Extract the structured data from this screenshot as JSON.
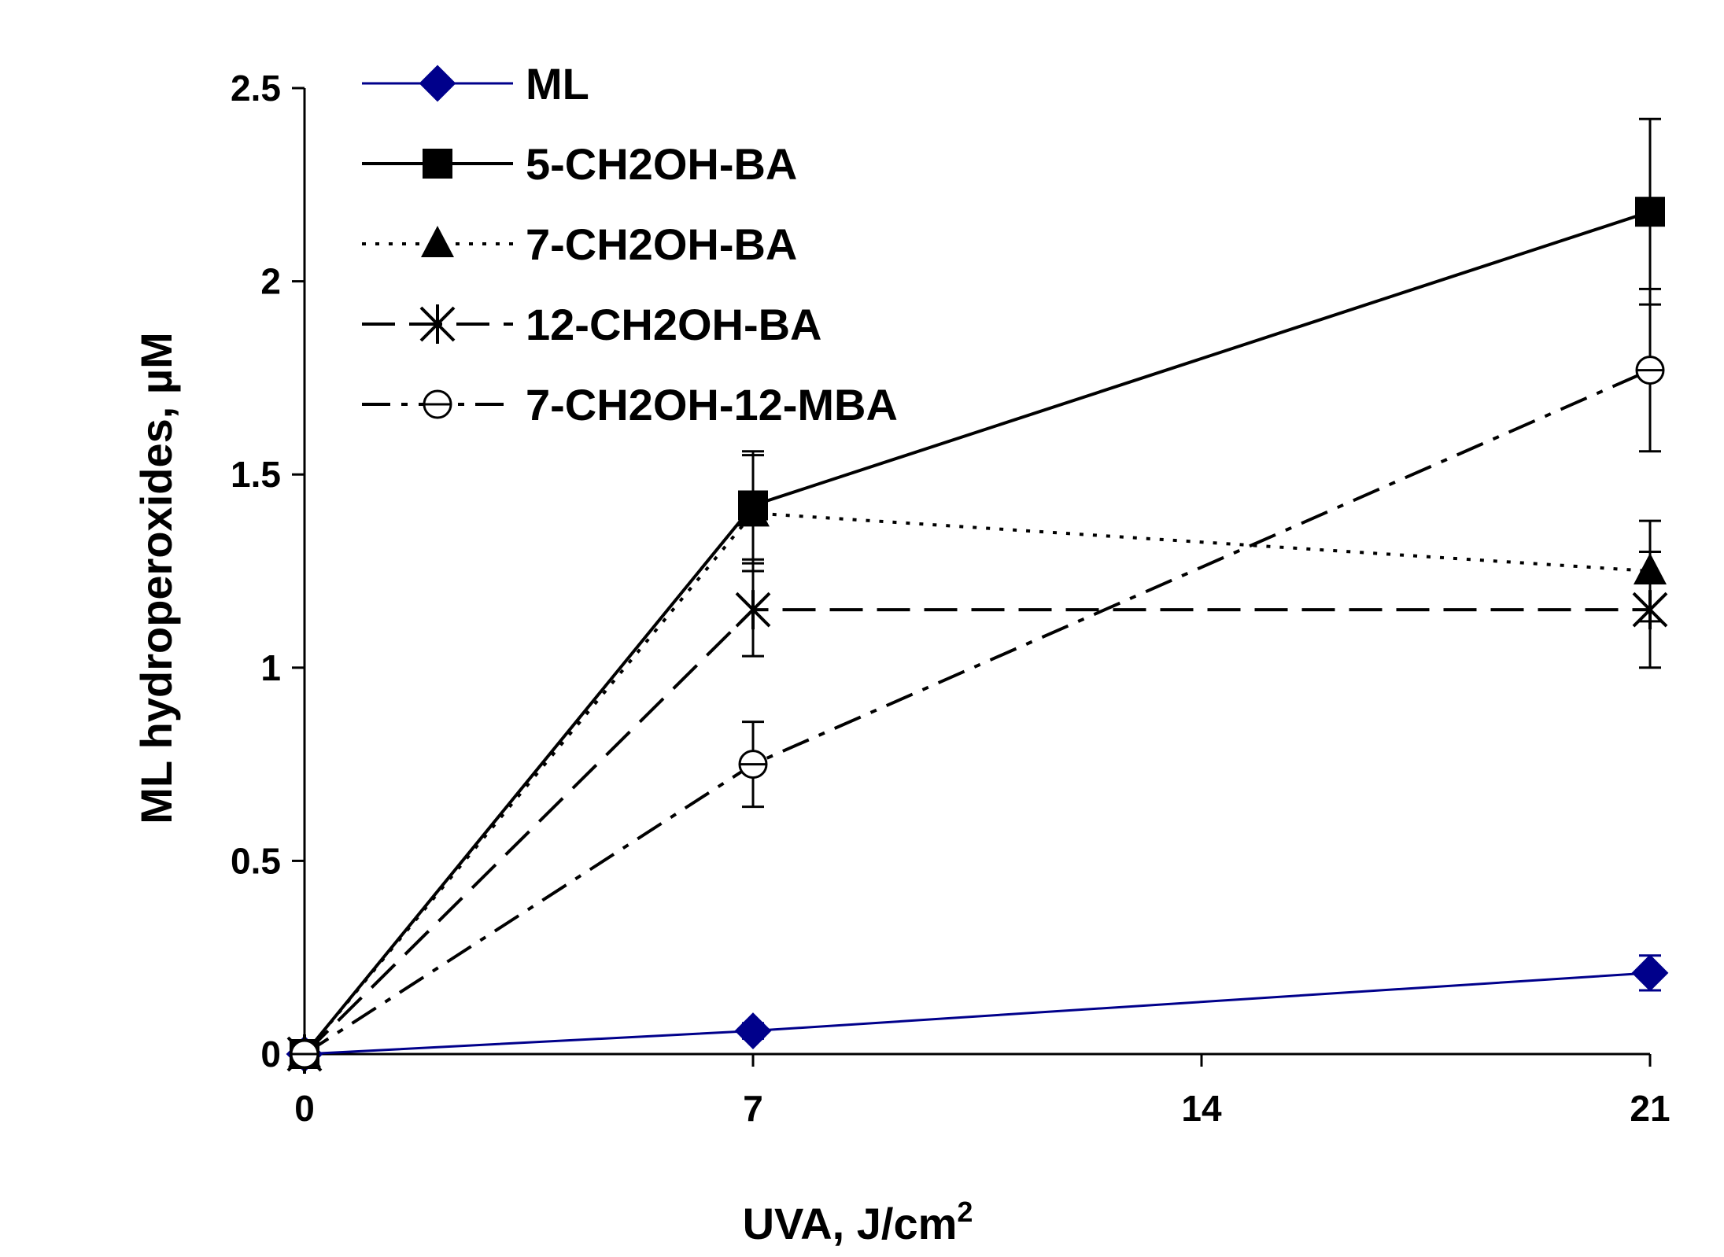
{
  "chart_data": {
    "type": "line",
    "title": "",
    "xlabel": "UVA, J/cm",
    "xlabel_superscript": "2",
    "ylabel": "ML hydroperoxides, µM",
    "xlim": [
      0,
      21
    ],
    "ylim": [
      0,
      2.5
    ],
    "xticks": [
      0,
      7,
      14,
      21
    ],
    "xtick_labels": [
      "0",
      "7",
      "14",
      "21"
    ],
    "yticks": [
      0,
      0.5,
      1,
      1.5,
      2,
      2.5
    ],
    "ytick_labels": [
      "0",
      "0.5",
      "1",
      "1.5",
      "2",
      "2.5"
    ],
    "grid": false,
    "legend_position": "top-left",
    "series": [
      {
        "name": "ML",
        "color": "#00008b",
        "line_style": "solid",
        "marker": "diamond",
        "x": [
          0,
          7,
          21
        ],
        "y": [
          0,
          0.06,
          0.21
        ],
        "err": [
          0,
          0.02,
          0.045
        ]
      },
      {
        "name": "5-CH2OH-BA",
        "color": "#000000",
        "line_style": "solid",
        "marker": "square",
        "x": [
          0,
          7,
          21
        ],
        "y": [
          0,
          1.42,
          2.18
        ],
        "err": [
          0,
          0.14,
          0.24
        ]
      },
      {
        "name": "7-CH2OH-BA",
        "color": "#000000",
        "line_style": "dotted",
        "marker": "triangle",
        "x": [
          0,
          7,
          21
        ],
        "y": [
          0,
          1.4,
          1.25
        ],
        "err": [
          0,
          0.15,
          0.13
        ]
      },
      {
        "name": "12-CH2OH-BA",
        "color": "#000000",
        "line_style": "dashed",
        "marker": "asterisk",
        "x": [
          0,
          7,
          21
        ],
        "y": [
          0,
          1.15,
          1.15
        ],
        "err": [
          0,
          0.12,
          0.15
        ]
      },
      {
        "name": "7-CH2OH-12-MBA",
        "color": "#000000",
        "line_style": "dash-dot",
        "marker": "circle",
        "x": [
          0,
          7,
          21
        ],
        "y": [
          0,
          0.75,
          1.77
        ],
        "err": [
          0,
          0.11,
          0.21
        ]
      }
    ]
  }
}
